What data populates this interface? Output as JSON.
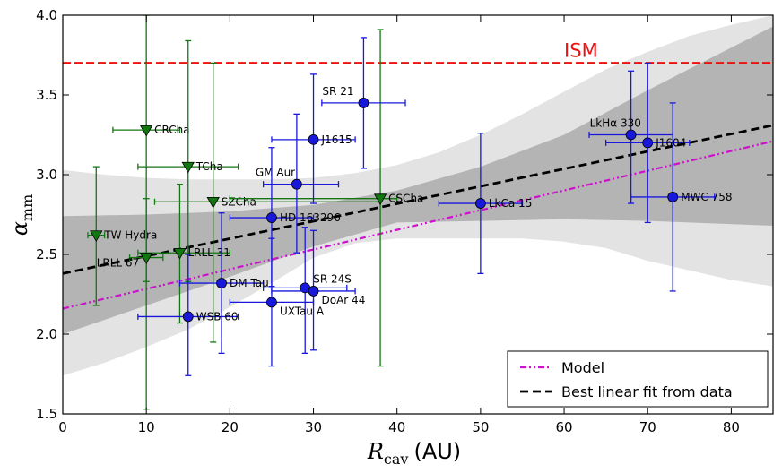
{
  "colors": {
    "outer_band": "#e3e3e3",
    "inner_band": "#b4b4b4",
    "green_series": "#117711",
    "blue_series": "#1818dd",
    "ism_line": "#ee1111",
    "model_line": "#cc11cc",
    "fit_line": "#000000"
  },
  "chart_data": {
    "type": "scatter",
    "xlabel_symbol": "R",
    "xlabel_subscript": "cav",
    "xlabel_unit": "(AU)",
    "ylabel_symbol": "α",
    "ylabel_subscript": "mm",
    "xlim": [
      0,
      85
    ],
    "ylim": [
      1.5,
      4.0
    ],
    "xticks": [
      0,
      10,
      20,
      30,
      40,
      50,
      60,
      70,
      80
    ],
    "yticks": [
      1.5,
      2.0,
      2.5,
      3.0,
      3.5,
      4.0
    ],
    "xtick_labels": [
      "0",
      "10",
      "20",
      "30",
      "40",
      "50",
      "60",
      "70",
      "80"
    ],
    "ytick_labels": [
      "1.5",
      "2.0",
      "2.5",
      "3.0",
      "3.5",
      "4.0"
    ],
    "ism": {
      "label": "ISM",
      "y": 3.7
    },
    "model_line": {
      "label": "Model",
      "x": [
        0,
        85
      ],
      "y": [
        2.16,
        3.21
      ]
    },
    "fit_line": {
      "label": "Best linear fit from data",
      "x": [
        0,
        85
      ],
      "y": [
        2.38,
        3.31
      ]
    },
    "outer_band": {
      "x": [
        0,
        5,
        10,
        15,
        20,
        25,
        30,
        35,
        40,
        45,
        50,
        55,
        60,
        65,
        70,
        75,
        80,
        85
      ],
      "upper": [
        3.03,
        3.0,
        2.98,
        2.97,
        2.97,
        2.97,
        2.98,
        3.01,
        3.06,
        3.14,
        3.25,
        3.38,
        3.52,
        3.66,
        3.77,
        3.87,
        3.94,
        4.0
      ],
      "lower": [
        1.74,
        1.82,
        1.92,
        2.03,
        2.17,
        2.32,
        2.48,
        2.57,
        2.6,
        2.6,
        2.6,
        2.6,
        2.58,
        2.54,
        2.46,
        2.4,
        2.34,
        2.3
      ]
    },
    "inner_band": {
      "x": [
        0,
        10,
        20,
        30,
        40,
        50,
        60,
        70,
        85
      ],
      "upper": [
        2.74,
        2.75,
        2.77,
        2.81,
        2.9,
        3.05,
        3.25,
        3.53,
        3.93
      ],
      "lower": [
        2.0,
        2.18,
        2.36,
        2.55,
        2.7,
        2.71,
        2.72,
        2.71,
        2.68
      ]
    },
    "series": [
      {
        "name": "green",
        "marker": "triangle-down",
        "points": [
          {
            "label": "CRCha",
            "x": 10,
            "y": 3.28,
            "x_err": [
              6,
              14
            ],
            "y_err": [
              1.53,
              4.0
            ],
            "label_pos": "right"
          },
          {
            "label": "TCha",
            "x": 15,
            "y": 3.05,
            "x_err": [
              9,
              21
            ],
            "y_err": [
              2.33,
              3.84
            ],
            "label_pos": "right"
          },
          {
            "label": "SZCha",
            "x": 18,
            "y": 2.83,
            "x_err": [
              11,
              38
            ],
            "y_err": [
              1.95,
              3.7
            ],
            "label_pos": "right"
          },
          {
            "label": "CSCha",
            "x": 38,
            "y": 2.85,
            "x_err": [
              20,
              40
            ],
            "y_err": [
              1.8,
              3.91
            ],
            "label_pos": "right"
          },
          {
            "label": "TW Hydra",
            "x": 4,
            "y": 2.62,
            "x_err": [
              3.0,
              5.0
            ],
            "y_err": [
              2.18,
              3.05
            ],
            "label_pos": "right"
          },
          {
            "label": "LRLL 31",
            "x": 14,
            "y": 2.51,
            "x_err": [
              9,
              20
            ],
            "y_err": [
              2.07,
              2.94
            ],
            "label_pos": "right"
          },
          {
            "label": "LRLL 67",
            "x": 10,
            "y": 2.48,
            "x_err": [
              8,
              12
            ],
            "y_err": [
              2.33,
              2.85
            ],
            "label_pos": "left"
          }
        ]
      },
      {
        "name": "blue",
        "marker": "circle",
        "points": [
          {
            "label": "SR 21",
            "x": 36,
            "y": 3.45,
            "x_err": [
              31,
              41
            ],
            "y_err": [
              3.04,
              3.86
            ],
            "label_pos": "above-left"
          },
          {
            "label": "J1615",
            "x": 30,
            "y": 3.22,
            "x_err": [
              25,
              35
            ],
            "y_err": [
              2.82,
              3.63
            ],
            "label_pos": "right"
          },
          {
            "label": "GM Aur",
            "x": 28,
            "y": 2.94,
            "x_err": [
              24,
              33
            ],
            "y_err": [
              2.51,
              3.38
            ],
            "label_pos": "above-left"
          },
          {
            "label": "HD 163296",
            "x": 25,
            "y": 2.73,
            "x_err": [
              20,
              30
            ],
            "y_err": [
              2.3,
              3.17
            ],
            "label_pos": "right"
          },
          {
            "label": "LkCa 15",
            "x": 50,
            "y": 2.82,
            "x_err": [
              45,
              55
            ],
            "y_err": [
              2.38,
              3.26
            ],
            "label_pos": "right"
          },
          {
            "label": "LkHα 330",
            "x": 68,
            "y": 3.25,
            "x_err": [
              63,
              73
            ],
            "y_err": [
              2.82,
              3.65
            ],
            "label_pos": "above-left"
          },
          {
            "label": "J1604",
            "x": 70,
            "y": 3.2,
            "x_err": [
              65,
              75
            ],
            "y_err": [
              2.7,
              3.7
            ],
            "label_pos": "right"
          },
          {
            "label": "MWC 758",
            "x": 73,
            "y": 2.86,
            "x_err": [
              68,
              78
            ],
            "y_err": [
              2.27,
              3.45
            ],
            "label_pos": "right"
          },
          {
            "label": "DM Tau",
            "x": 19,
            "y": 2.32,
            "x_err": [
              14,
              24
            ],
            "y_err": [
              1.88,
              2.76
            ],
            "label_pos": "right"
          },
          {
            "label": "SR 24S",
            "x": 29,
            "y": 2.29,
            "x_err": [
              24,
              34
            ],
            "y_err": [
              1.88,
              2.67
            ],
            "label_pos": "above-right"
          },
          {
            "label": "DoAr 44",
            "x": 30,
            "y": 2.27,
            "x_err": [
              25,
              35
            ],
            "y_err": [
              1.9,
              2.65
            ],
            "label_pos": "below-right"
          },
          {
            "label": "UXTau A",
            "x": 25,
            "y": 2.2,
            "x_err": [
              20,
              30
            ],
            "y_err": [
              1.8,
              2.6
            ],
            "label_pos": "below-right"
          },
          {
            "label": "WSB 60",
            "x": 15,
            "y": 2.11,
            "x_err": [
              9,
              21
            ],
            "y_err": [
              1.74,
              2.5
            ],
            "label_pos": "right"
          }
        ]
      }
    ],
    "legend": [
      "Model",
      "Best linear fit from data"
    ],
    "legend_position": "lower-right",
    "grid": false
  }
}
